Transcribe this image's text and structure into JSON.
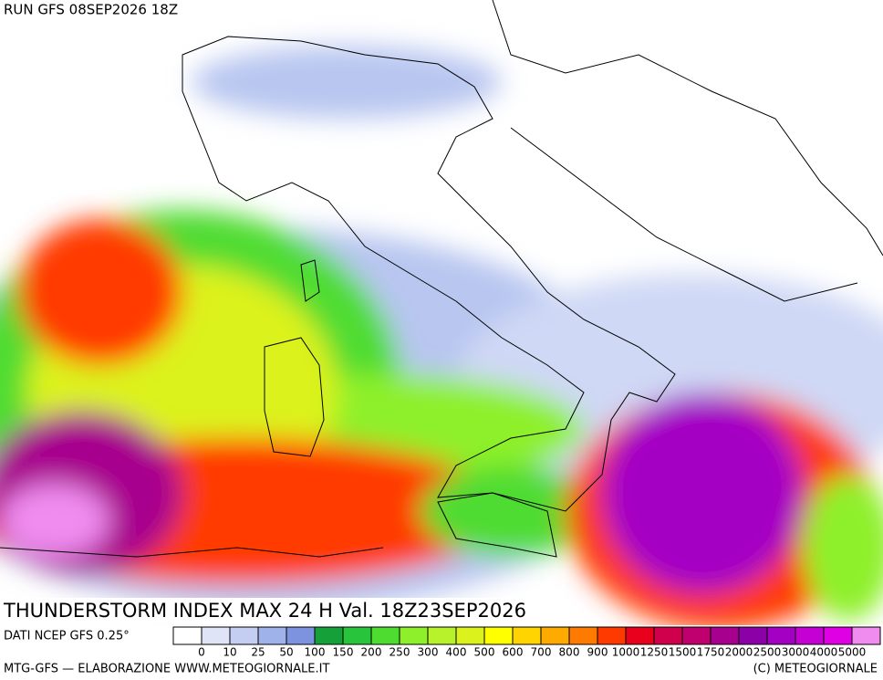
{
  "header": {
    "run": "RUN GFS 08SEP2026 18Z"
  },
  "title": "THUNDERSTORM INDEX MAX 24 H Val. 18Z23SEP2026",
  "source": "DATI NCEP GFS 0.25°",
  "legend": {
    "labels": [
      "0",
      "10",
      "25",
      "50",
      "100",
      "150",
      "200",
      "250",
      "300",
      "400",
      "500",
      "600",
      "700",
      "800",
      "900",
      "1000",
      "1250",
      "1500",
      "1750",
      "2000",
      "2500",
      "3000",
      "4000",
      "5000"
    ],
    "colors": [
      "#ffffff",
      "#dfe5f7",
      "#c3cef2",
      "#9fb2ea",
      "#7d93e0",
      "#16a03a",
      "#28c43c",
      "#4fdc30",
      "#8ef02a",
      "#b8f22a",
      "#dcf21c",
      "#ffff00",
      "#ffd400",
      "#ffaa00",
      "#ff7a00",
      "#ff3a00",
      "#e8001c",
      "#d0004c",
      "#c0006e",
      "#a8008e",
      "#8c00a8",
      "#a400c4",
      "#c400d4",
      "#e000e4",
      "#f08cf0"
    ]
  },
  "footer": {
    "left": "MTG-GFS — ELABORAZIONE WWW.METEOGIORNALE.IT",
    "right": "(C) METEOGIORNALE"
  }
}
